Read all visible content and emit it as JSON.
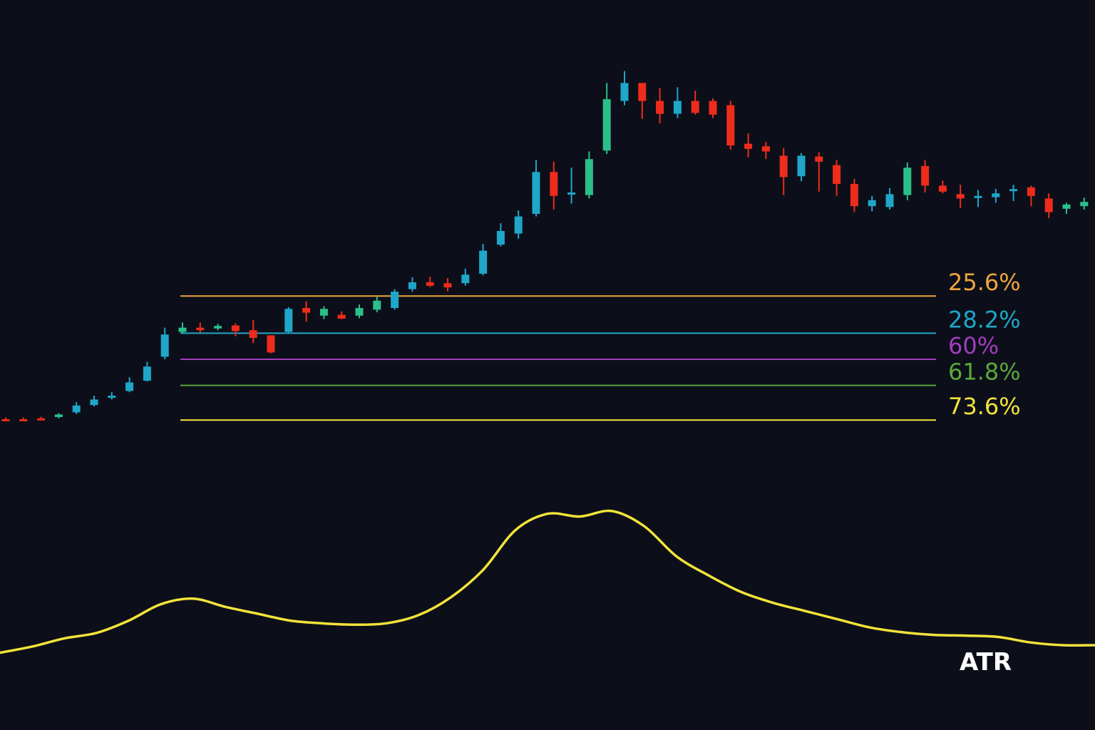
{
  "colors": {
    "background": "#0c0f19",
    "up_candle": "#2bbf8a",
    "up_candle_alt": "#1fa6c9",
    "down_candle": "#ee2c1c",
    "atr_line": "#f3e33a"
  },
  "chart_data": {
    "type": "candlestick",
    "title": "",
    "xlabel": "",
    "ylabel": "",
    "grid": false,
    "axes_visible": false,
    "ylim": [
      0,
      100
    ],
    "candles": [
      {
        "o": 12.0,
        "h": 12.4,
        "l": 11.6,
        "c": 12.0,
        "color": "down"
      },
      {
        "o": 12.0,
        "h": 12.4,
        "l": 11.6,
        "c": 12.0,
        "color": "down"
      },
      {
        "o": 12.2,
        "h": 12.6,
        "l": 11.8,
        "c": 12.2,
        "color": "down"
      },
      {
        "o": 12.5,
        "h": 13.4,
        "l": 12.2,
        "c": 13.1,
        "color": "up"
      },
      {
        "o": 13.6,
        "h": 16.0,
        "l": 13.2,
        "c": 15.2,
        "color": "up_alt"
      },
      {
        "o": 15.3,
        "h": 17.5,
        "l": 15.0,
        "c": 16.6,
        "color": "up_alt"
      },
      {
        "o": 17.0,
        "h": 18.3,
        "l": 16.6,
        "c": 17.5,
        "color": "up_alt"
      },
      {
        "o": 18.6,
        "h": 21.8,
        "l": 18.3,
        "c": 20.6,
        "color": "up_alt"
      },
      {
        "o": 21.0,
        "h": 25.4,
        "l": 20.8,
        "c": 24.3,
        "color": "up_alt"
      },
      {
        "o": 26.6,
        "h": 33.4,
        "l": 26.0,
        "c": 31.8,
        "color": "up_alt"
      },
      {
        "o": 32.4,
        "h": 34.6,
        "l": 32.0,
        "c": 33.4,
        "color": "up"
      },
      {
        "o": 33.4,
        "h": 34.6,
        "l": 32.2,
        "c": 32.8,
        "color": "down"
      },
      {
        "o": 33.2,
        "h": 34.3,
        "l": 32.8,
        "c": 33.8,
        "color": "up"
      },
      {
        "o": 33.9,
        "h": 34.4,
        "l": 31.4,
        "c": 32.6,
        "color": "down"
      },
      {
        "o": 32.8,
        "h": 35.2,
        "l": 29.8,
        "c": 31.0,
        "color": "down"
      },
      {
        "o": 31.6,
        "h": 30.6,
        "l": 27.4,
        "c": 27.6,
        "color": "down"
      },
      {
        "o": 32.4,
        "h": 38.2,
        "l": 32.2,
        "c": 37.8,
        "color": "up_alt"
      },
      {
        "o": 38.0,
        "h": 39.6,
        "l": 34.8,
        "c": 36.9,
        "color": "down"
      },
      {
        "o": 36.2,
        "h": 38.4,
        "l": 35.4,
        "c": 37.8,
        "color": "up"
      },
      {
        "o": 36.4,
        "h": 37.2,
        "l": 35.4,
        "c": 35.5,
        "color": "down"
      },
      {
        "o": 36.2,
        "h": 38.8,
        "l": 35.6,
        "c": 38.0,
        "color": "up"
      },
      {
        "o": 37.6,
        "h": 40.6,
        "l": 37.0,
        "c": 39.7,
        "color": "up"
      },
      {
        "o": 38.0,
        "h": 42.4,
        "l": 37.6,
        "c": 41.8,
        "color": "up_alt"
      },
      {
        "o": 42.4,
        "h": 45.2,
        "l": 41.8,
        "c": 44.0,
        "color": "up_alt"
      },
      {
        "o": 44.0,
        "h": 45.3,
        "l": 42.9,
        "c": 43.2,
        "color": "down"
      },
      {
        "o": 43.8,
        "h": 45.0,
        "l": 41.9,
        "c": 42.8,
        "color": "down"
      },
      {
        "o": 43.8,
        "h": 47.2,
        "l": 43.2,
        "c": 45.8,
        "color": "up_alt"
      },
      {
        "o": 46.0,
        "h": 53.0,
        "l": 45.6,
        "c": 51.4,
        "color": "up_alt"
      },
      {
        "o": 52.8,
        "h": 57.8,
        "l": 52.4,
        "c": 56.0,
        "color": "up_alt"
      },
      {
        "o": 55.4,
        "h": 60.8,
        "l": 54.2,
        "c": 59.4,
        "color": "up_alt"
      },
      {
        "o": 60.0,
        "h": 72.6,
        "l": 59.4,
        "c": 69.8,
        "color": "up_alt"
      },
      {
        "o": 69.8,
        "h": 72.2,
        "l": 61.0,
        "c": 64.2,
        "color": "down"
      },
      {
        "o": 64.8,
        "h": 70.8,
        "l": 62.4,
        "c": 65.0,
        "color": "up_alt"
      },
      {
        "o": 64.4,
        "h": 74.6,
        "l": 63.6,
        "c": 72.8,
        "color": "up"
      },
      {
        "o": 74.8,
        "h": 90.6,
        "l": 74.0,
        "c": 86.8,
        "color": "up"
      },
      {
        "o": 86.4,
        "h": 93.4,
        "l": 85.4,
        "c": 90.6,
        "color": "up_alt"
      },
      {
        "o": 90.6,
        "h": 90.4,
        "l": 82.2,
        "c": 86.4,
        "color": "down"
      },
      {
        "o": 86.4,
        "h": 89.4,
        "l": 81.2,
        "c": 83.4,
        "color": "down"
      },
      {
        "o": 83.4,
        "h": 89.6,
        "l": 82.4,
        "c": 86.4,
        "color": "up_alt"
      },
      {
        "o": 86.4,
        "h": 88.8,
        "l": 83.2,
        "c": 83.6,
        "color": "down"
      },
      {
        "o": 86.4,
        "h": 87.0,
        "l": 82.4,
        "c": 83.2,
        "color": "down"
      },
      {
        "o": 85.4,
        "h": 86.4,
        "l": 75.0,
        "c": 76.0,
        "color": "down"
      },
      {
        "o": 76.4,
        "h": 78.8,
        "l": 73.2,
        "c": 75.2,
        "color": "down"
      },
      {
        "o": 75.8,
        "h": 76.8,
        "l": 72.8,
        "c": 74.6,
        "color": "down"
      },
      {
        "o": 73.6,
        "h": 75.4,
        "l": 64.4,
        "c": 68.6,
        "color": "down"
      },
      {
        "o": 68.8,
        "h": 74.2,
        "l": 67.6,
        "c": 73.6,
        "color": "up_alt"
      },
      {
        "o": 73.4,
        "h": 74.4,
        "l": 65.2,
        "c": 72.2,
        "color": "down"
      },
      {
        "o": 71.4,
        "h": 72.6,
        "l": 64.2,
        "c": 67.0,
        "color": "down"
      },
      {
        "o": 67.0,
        "h": 68.2,
        "l": 60.4,
        "c": 61.8,
        "color": "down"
      },
      {
        "o": 61.8,
        "h": 64.2,
        "l": 60.6,
        "c": 63.2,
        "color": "up_alt"
      },
      {
        "o": 61.6,
        "h": 66.0,
        "l": 61.0,
        "c": 64.6,
        "color": "up_alt"
      },
      {
        "o": 64.4,
        "h": 72.0,
        "l": 63.2,
        "c": 70.8,
        "color": "up"
      },
      {
        "o": 71.2,
        "h": 72.6,
        "l": 65.0,
        "c": 66.6,
        "color": "down"
      },
      {
        "o": 66.6,
        "h": 67.8,
        "l": 64.8,
        "c": 65.2,
        "color": "down"
      },
      {
        "o": 64.6,
        "h": 66.8,
        "l": 61.4,
        "c": 63.6,
        "color": "down"
      },
      {
        "o": 63.8,
        "h": 65.6,
        "l": 61.6,
        "c": 64.2,
        "color": "up_alt"
      },
      {
        "o": 63.9,
        "h": 65.8,
        "l": 62.6,
        "c": 64.8,
        "color": "up_alt"
      },
      {
        "o": 65.8,
        "h": 66.8,
        "l": 63.0,
        "c": 65.4,
        "color": "up_alt"
      },
      {
        "o": 66.2,
        "h": 66.6,
        "l": 61.8,
        "c": 64.2,
        "color": "down"
      },
      {
        "o": 63.6,
        "h": 64.8,
        "l": 59.0,
        "c": 60.4,
        "color": "down"
      },
      {
        "o": 61.2,
        "h": 62.6,
        "l": 60.0,
        "c": 62.2,
        "color": "up"
      },
      {
        "o": 61.8,
        "h": 63.8,
        "l": 61.0,
        "c": 62.8,
        "color": "up"
      },
      {
        "o": 61.6,
        "h": 62.8,
        "l": 61.2,
        "c": 62.6,
        "color": "up"
      }
    ],
    "fib_levels": [
      {
        "label": "25.6%",
        "value": 40.8,
        "color": "#f0a53a"
      },
      {
        "label": "28.2%",
        "value": 32.1,
        "color": "#1fa6c9"
      },
      {
        "label": "60%",
        "value": 26.0,
        "color": "#a23dbd"
      },
      {
        "label": "61.8%",
        "value": 19.9,
        "color": "#5aa83b"
      },
      {
        "label": "73.6%",
        "value": 11.8,
        "color": "#f3e33a"
      }
    ],
    "atr": {
      "label": "ATR",
      "values": [
        1.5,
        2.4,
        3.6,
        4.4,
        6.2,
        8.6,
        9.4,
        8.2,
        7.2,
        6.2,
        5.8,
        5.6,
        5.8,
        7.0,
        9.6,
        13.6,
        19.4,
        21.8,
        21.4,
        22.2,
        20.0,
        15.6,
        12.8,
        10.4,
        8.8,
        7.6,
        6.4,
        5.2,
        4.5,
        4.1,
        4.0,
        3.8,
        3.0,
        2.6,
        2.6
      ]
    }
  }
}
